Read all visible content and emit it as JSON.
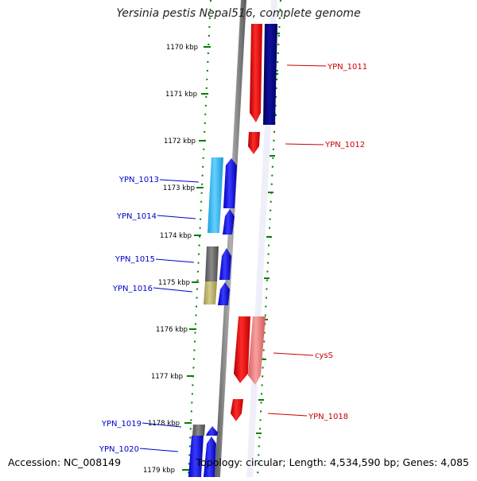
{
  "title": "Yersinia pestis Nepal516, complete genome",
  "footer": {
    "accession": "Accession: NC_008149",
    "summary": "Topology: circular; Length: 4,534,590 bp; Genes: 4,085"
  },
  "ticks": [
    "1170 kbp",
    "1171 kbp",
    "1172 kbp",
    "1173 kbp",
    "1174 kbp",
    "1175 kbp",
    "1176 kbp",
    "1177 kbp",
    "1178 kbp",
    "1179 kbp"
  ],
  "gene_labels_right": [
    "YPN_1011",
    "YPN_1012",
    "cysS",
    "YPN_1018"
  ],
  "gene_labels_left": [
    "YPN_1013",
    "YPN_1014",
    "YPN_1015",
    "YPN_1016",
    "YPN_1019",
    "YPN_1020"
  ],
  "colors": {
    "red": "#ff0000",
    "dark_navy": "#000080",
    "blue": "#0000ff",
    "sky": "#33bbff",
    "gray": "#6e6e6e",
    "khaki": "#bdb76b",
    "pink": "#f08080",
    "label_blue": "#0000cc",
    "label_red": "#cc0000",
    "tick_green": "#008000"
  }
}
